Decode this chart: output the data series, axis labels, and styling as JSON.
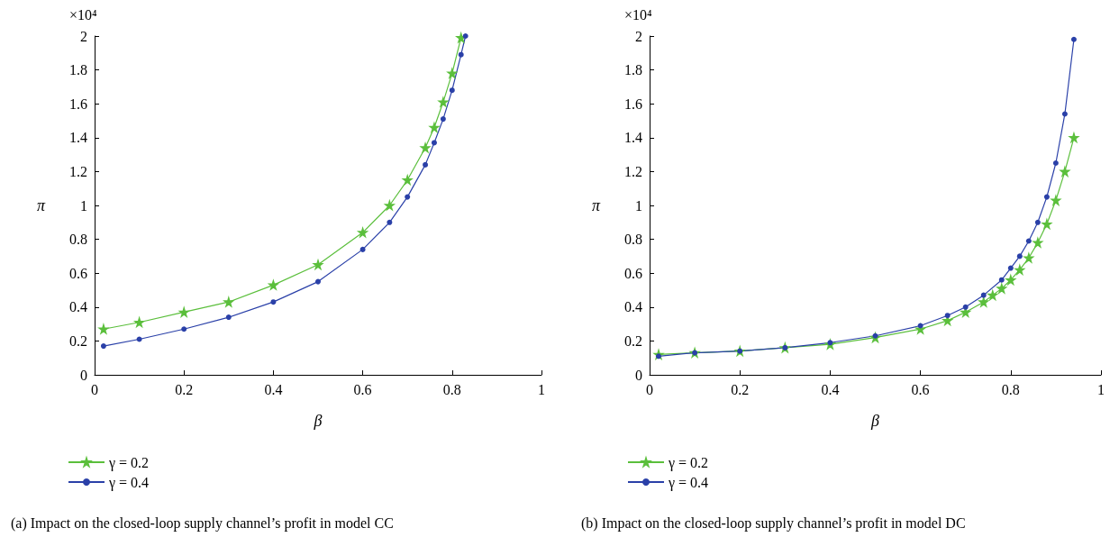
{
  "chart_data": [
    {
      "type": "line",
      "xlabel": "β",
      "ylabel": "π",
      "annotations": [
        "×10⁴",
        "(a) Impact on the closed-loop supply channel’s profit in model CC"
      ],
      "xlim": [
        0,
        1
      ],
      "xticks": [
        0,
        0.2,
        0.4,
        0.6,
        0.8,
        1
      ],
      "ylim": [
        0,
        2
      ],
      "yticks": [
        0,
        0.2,
        0.4,
        0.6,
        0.8,
        1,
        1.2,
        1.4,
        1.6,
        1.8,
        2
      ],
      "grid": false,
      "legend": "bottom left",
      "series": [
        {
          "name": "γ = 0.2",
          "color": "#5bbf3c",
          "marker": "star",
          "x": [
            0.02,
            0.1,
            0.2,
            0.3,
            0.4,
            0.5,
            0.6,
            0.66,
            0.7,
            0.74,
            0.76,
            0.78,
            0.8,
            0.82
          ],
          "values": [
            0.27,
            0.31,
            0.37,
            0.43,
            0.53,
            0.65,
            0.84,
            1.0,
            1.15,
            1.34,
            1.46,
            1.61,
            1.78,
            1.99
          ]
        },
        {
          "name": "γ = 0.4",
          "color": "#2a40a8",
          "marker": "circle",
          "x": [
            0.02,
            0.1,
            0.2,
            0.3,
            0.4,
            0.5,
            0.6,
            0.66,
            0.7,
            0.74,
            0.76,
            0.78,
            0.8,
            0.82,
            0.83
          ],
          "values": [
            0.17,
            0.21,
            0.27,
            0.34,
            0.43,
            0.55,
            0.74,
            0.9,
            1.05,
            1.24,
            1.37,
            1.51,
            1.68,
            1.89,
            2.0
          ]
        }
      ]
    },
    {
      "type": "line",
      "xlabel": "β",
      "ylabel": "π",
      "annotations": [
        "×10⁴",
        "(b) Impact on the closed-loop supply channel’s profit in model DC"
      ],
      "xlim": [
        0,
        1
      ],
      "xticks": [
        0,
        0.2,
        0.4,
        0.6,
        0.8,
        1
      ],
      "ylim": [
        0,
        2
      ],
      "yticks": [
        0,
        0.2,
        0.4,
        0.6,
        0.8,
        1,
        1.2,
        1.4,
        1.6,
        1.8,
        2
      ],
      "grid": false,
      "legend": "bottom left",
      "series": [
        {
          "name": "γ = 0.2",
          "color": "#5bbf3c",
          "marker": "star",
          "x": [
            0.02,
            0.1,
            0.2,
            0.3,
            0.4,
            0.5,
            0.6,
            0.66,
            0.7,
            0.74,
            0.76,
            0.78,
            0.8,
            0.82,
            0.84,
            0.86,
            0.88,
            0.9,
            0.92,
            0.94
          ],
          "values": [
            0.12,
            0.13,
            0.14,
            0.16,
            0.18,
            0.22,
            0.27,
            0.32,
            0.37,
            0.43,
            0.47,
            0.51,
            0.56,
            0.62,
            0.69,
            0.78,
            0.89,
            1.03,
            1.2,
            1.4
          ]
        },
        {
          "name": "γ = 0.4",
          "color": "#2a40a8",
          "marker": "circle",
          "x": [
            0.02,
            0.1,
            0.2,
            0.3,
            0.4,
            0.5,
            0.6,
            0.66,
            0.7,
            0.74,
            0.78,
            0.8,
            0.82,
            0.84,
            0.86,
            0.88,
            0.9,
            0.92,
            0.94
          ],
          "values": [
            0.11,
            0.13,
            0.14,
            0.16,
            0.19,
            0.23,
            0.29,
            0.35,
            0.4,
            0.47,
            0.56,
            0.63,
            0.7,
            0.79,
            0.9,
            1.05,
            1.25,
            1.54,
            1.98
          ]
        }
      ]
    }
  ]
}
